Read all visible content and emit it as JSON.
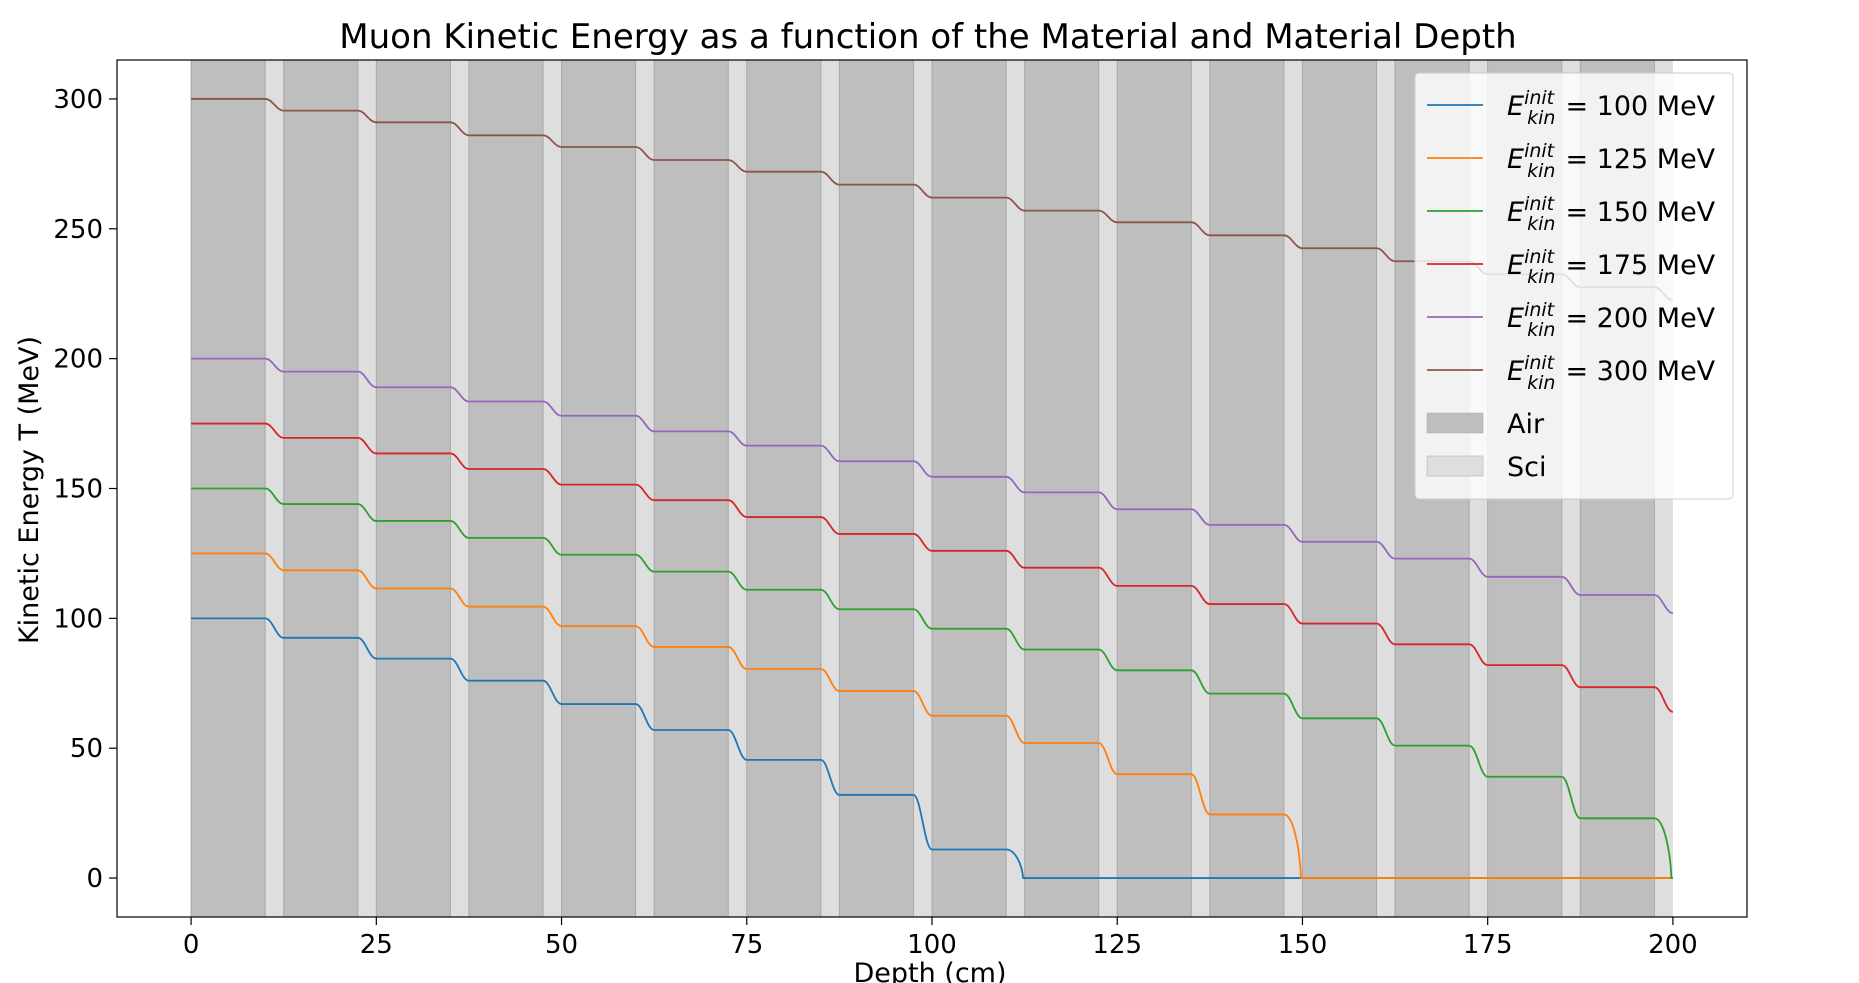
{
  "chart_data": {
    "type": "line",
    "title": "Muon Kinetic Energy as a function of the Material and Material Depth",
    "xlabel": "Depth (cm)",
    "ylabel": "Kinetic Energy T (MeV)",
    "xlim": [
      -10,
      210
    ],
    "ylim": [
      -15,
      315
    ],
    "xticks": [
      0,
      25,
      50,
      75,
      100,
      125,
      150,
      175,
      200
    ],
    "yticks": [
      0,
      50,
      100,
      150,
      200,
      250,
      300
    ],
    "grid": false,
    "legend_position": "top-right",
    "regions": [
      {
        "name": "Air",
        "color": "#bebebe",
        "spans": [
          [
            0,
            10
          ],
          [
            12.5,
            22.5
          ],
          [
            25,
            35
          ],
          [
            37.5,
            47.5
          ],
          [
            50,
            60
          ],
          [
            62.5,
            72.5
          ],
          [
            75,
            85
          ],
          [
            87.5,
            97.5
          ],
          [
            100,
            110
          ],
          [
            112.5,
            122.5
          ],
          [
            125,
            135
          ],
          [
            137.5,
            147.5
          ],
          [
            150,
            160
          ],
          [
            162.5,
            172.5
          ],
          [
            175,
            185
          ],
          [
            187.5,
            197.5
          ]
        ]
      },
      {
        "name": "Sci",
        "color": "#dedede",
        "spans": [
          [
            10,
            12.5
          ],
          [
            22.5,
            25
          ],
          [
            35,
            37.5
          ],
          [
            47.5,
            50
          ],
          [
            60,
            62.5
          ],
          [
            72.5,
            75
          ],
          [
            85,
            87.5
          ],
          [
            97.5,
            100
          ],
          [
            110,
            112.5
          ],
          [
            122.5,
            125
          ],
          [
            135,
            137.5
          ],
          [
            147.5,
            150
          ],
          [
            160,
            162.5
          ],
          [
            172.5,
            175
          ],
          [
            185,
            187.5
          ],
          [
            197.5,
            200
          ]
        ]
      }
    ],
    "plateau_starts": [
      0,
      12.5,
      25,
      37.5,
      50,
      62.5,
      75,
      87.5,
      100,
      112.5,
      125,
      137.5,
      150,
      162.5,
      175,
      187.5,
      200
    ],
    "series": [
      {
        "legend_symbol": "E",
        "legend_sub": "kin",
        "legend_sup": "init",
        "legend_value": "= 100 MeV",
        "color": "#1f77b4",
        "plateaus": [
          100,
          92.5,
          84.5,
          76,
          67,
          57,
          45.5,
          32,
          11,
          0,
          0,
          0,
          0,
          0,
          0,
          0,
          0
        ]
      },
      {
        "legend_symbol": "E",
        "legend_sub": "kin",
        "legend_sup": "init",
        "legend_value": "= 125 MeV",
        "color": "#ff7f0e",
        "plateaus": [
          125,
          118.5,
          111.5,
          104.5,
          97,
          89,
          80.5,
          72,
          62.5,
          52,
          40,
          24.5,
          0,
          0,
          0,
          0,
          0
        ]
      },
      {
        "legend_symbol": "E",
        "legend_sub": "kin",
        "legend_sup": "init",
        "legend_value": "= 150 MeV",
        "color": "#2ca02c",
        "plateaus": [
          150,
          144,
          137.5,
          131,
          124.5,
          118,
          111,
          103.5,
          96,
          88,
          80,
          71,
          61.5,
          51,
          39,
          23,
          0
        ]
      },
      {
        "legend_symbol": "E",
        "legend_sub": "kin",
        "legend_sup": "init",
        "legend_value": "= 175 MeV",
        "color": "#d62728",
        "plateaus": [
          175,
          169.5,
          163.5,
          157.5,
          151.5,
          145.5,
          139,
          132.5,
          126,
          119.5,
          112.5,
          105.5,
          98,
          90,
          82,
          73.5,
          64
        ]
      },
      {
        "legend_symbol": "E",
        "legend_sub": "kin",
        "legend_sup": "init",
        "legend_value": "= 200 MeV",
        "color": "#9467bd",
        "plateaus": [
          200,
          195,
          189,
          183.5,
          178,
          172,
          166.5,
          160.5,
          154.5,
          148.5,
          142,
          136,
          129.5,
          123,
          116,
          109,
          102
        ]
      },
      {
        "legend_symbol": "E",
        "legend_sub": "kin",
        "legend_sup": "init",
        "legend_value": "= 300 MeV",
        "color": "#8c564b",
        "plateaus": [
          300,
          295.5,
          291,
          286,
          281.5,
          276.5,
          272,
          267,
          262,
          257,
          252.5,
          247.5,
          242.5,
          237.5,
          232.5,
          227.5,
          222.5
        ]
      }
    ],
    "legend_patches": [
      {
        "label": "Air",
        "color": "#bebebe"
      },
      {
        "label": "Sci",
        "color": "#dedede"
      }
    ]
  }
}
